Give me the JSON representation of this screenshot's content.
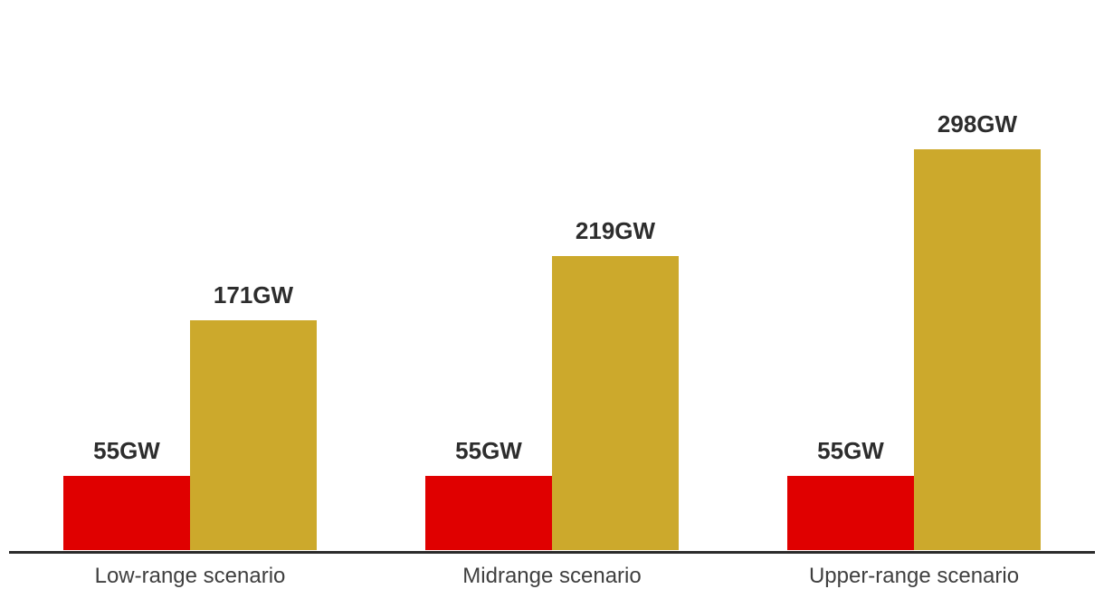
{
  "chart_data": {
    "type": "bar",
    "categories": [
      "Low-range scenario",
      "Midrange scenario",
      "Upper-range scenario"
    ],
    "series": [
      {
        "name": "current-capacity",
        "color": "#e00000",
        "values": [
          55,
          55,
          55
        ],
        "labels": [
          "55GW",
          "55GW",
          "55GW"
        ]
      },
      {
        "name": "scenario-capacity",
        "color": "#cca92c",
        "values": [
          171,
          219,
          298
        ],
        "labels": [
          "171GW",
          "219GW",
          "298GW"
        ]
      }
    ],
    "unit": "GW",
    "grid": false,
    "legend": "none",
    "axis_line_color": "#2b2b2b",
    "value_label_color": "#2d2d2d",
    "category_label_color": "#3f3f3f",
    "background_color": "#ffffff"
  }
}
